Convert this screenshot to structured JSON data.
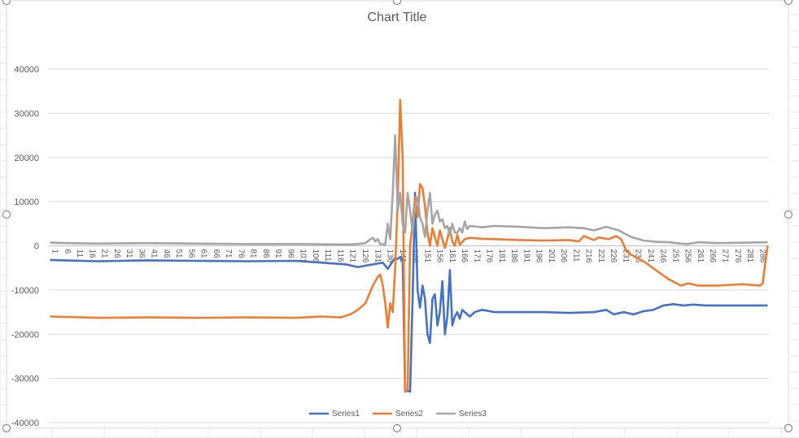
{
  "chart_data": {
    "type": "line",
    "title": "Chart Title",
    "xlabel": "",
    "ylabel": "",
    "ylim": [
      -40000,
      40000
    ],
    "y_ticks": [
      40000,
      30000,
      20000,
      10000,
      0,
      -10000,
      -20000,
      -30000,
      -40000
    ],
    "x_start": 1,
    "x_end": 290,
    "x_tick_labels": [
      1,
      6,
      11,
      16,
      21,
      26,
      31,
      36,
      41,
      46,
      51,
      56,
      61,
      66,
      71,
      76,
      81,
      86,
      91,
      96,
      101,
      106,
      111,
      116,
      121,
      126,
      131,
      136,
      141,
      146,
      151,
      156,
      161,
      166,
      171,
      176,
      181,
      186,
      191,
      196,
      201,
      206,
      211,
      216,
      221,
      226,
      231,
      236,
      241,
      246,
      251,
      256,
      261,
      266,
      271,
      276,
      281,
      286
    ],
    "grid": true,
    "legend_position": "bottom",
    "series": [
      {
        "name": "Series1",
        "color": "#4472C4",
        "points": [
          [
            1,
            -3200
          ],
          [
            20,
            -3500
          ],
          [
            40,
            -3300
          ],
          [
            60,
            -3400
          ],
          [
            80,
            -3500
          ],
          [
            100,
            -3400
          ],
          [
            120,
            -4200
          ],
          [
            125,
            -4800
          ],
          [
            130,
            -4300
          ],
          [
            135,
            -3800
          ],
          [
            137,
            -5200
          ],
          [
            139,
            -3500
          ],
          [
            140,
            -2800
          ],
          [
            141,
            -3000
          ],
          [
            142,
            -2500
          ],
          [
            143,
            -3200
          ],
          [
            144,
            -33000
          ],
          [
            145,
            -32800
          ],
          [
            146,
            -33000
          ],
          [
            147,
            -12000
          ],
          [
            148,
            12000
          ],
          [
            149,
            -10000
          ],
          [
            150,
            -14000
          ],
          [
            151,
            -9000
          ],
          [
            152,
            -12000
          ],
          [
            153,
            -20000
          ],
          [
            154,
            -22000
          ],
          [
            155,
            -12000
          ],
          [
            156,
            -11000
          ],
          [
            157,
            -18000
          ],
          [
            158,
            -15000
          ],
          [
            159,
            -8000
          ],
          [
            160,
            -20000
          ],
          [
            161,
            -16000
          ],
          [
            162,
            -5500
          ],
          [
            163,
            -18000
          ],
          [
            164,
            -16000
          ],
          [
            165,
            -15000
          ],
          [
            166,
            -16500
          ],
          [
            167,
            -14500
          ],
          [
            168,
            -15000
          ],
          [
            170,
            -16000
          ],
          [
            172,
            -15000
          ],
          [
            175,
            -14500
          ],
          [
            180,
            -15000
          ],
          [
            190,
            -15000
          ],
          [
            200,
            -15000
          ],
          [
            210,
            -15200
          ],
          [
            220,
            -15000
          ],
          [
            225,
            -14500
          ],
          [
            228,
            -15500
          ],
          [
            232,
            -15000
          ],
          [
            236,
            -15500
          ],
          [
            240,
            -14800
          ],
          [
            244,
            -14500
          ],
          [
            248,
            -13500
          ],
          [
            252,
            -13200
          ],
          [
            256,
            -13500
          ],
          [
            260,
            -13300
          ],
          [
            265,
            -13500
          ],
          [
            270,
            -13500
          ],
          [
            280,
            -13500
          ],
          [
            290,
            -13500
          ]
        ]
      },
      {
        "name": "Series2",
        "color": "#ED7D31",
        "points": [
          [
            1,
            -16000
          ],
          [
            20,
            -16300
          ],
          [
            40,
            -16200
          ],
          [
            60,
            -16300
          ],
          [
            80,
            -16200
          ],
          [
            100,
            -16300
          ],
          [
            110,
            -16000
          ],
          [
            118,
            -16200
          ],
          [
            122,
            -15500
          ],
          [
            125,
            -14500
          ],
          [
            128,
            -13000
          ],
          [
            131,
            -9000
          ],
          [
            133,
            -7000
          ],
          [
            134,
            -6500
          ],
          [
            135,
            -9000
          ],
          [
            136,
            -13000
          ],
          [
            137,
            -18500
          ],
          [
            138,
            -13000
          ],
          [
            139,
            -15000
          ],
          [
            140,
            -5000
          ],
          [
            141,
            10000
          ],
          [
            142,
            33000
          ],
          [
            143,
            20000
          ],
          [
            144,
            -33000
          ],
          [
            145,
            -32500
          ],
          [
            146,
            0
          ],
          [
            147,
            5000
          ],
          [
            148,
            11000
          ],
          [
            149,
            6500
          ],
          [
            150,
            14000
          ],
          [
            151,
            13000
          ],
          [
            152,
            9000
          ],
          [
            153,
            3000
          ],
          [
            154,
            0
          ],
          [
            155,
            4000
          ],
          [
            156,
            2000
          ],
          [
            157,
            0
          ],
          [
            158,
            3500
          ],
          [
            159,
            1500
          ],
          [
            160,
            -500
          ],
          [
            161,
            1500
          ],
          [
            162,
            4000
          ],
          [
            163,
            1000
          ],
          [
            164,
            0
          ],
          [
            165,
            2500
          ],
          [
            166,
            200
          ],
          [
            168,
            1500
          ],
          [
            170,
            1800
          ],
          [
            175,
            1600
          ],
          [
            180,
            1500
          ],
          [
            190,
            1300
          ],
          [
            200,
            1200
          ],
          [
            210,
            1300
          ],
          [
            214,
            1000
          ],
          [
            216,
            2200
          ],
          [
            220,
            1300
          ],
          [
            222,
            1900
          ],
          [
            226,
            1500
          ],
          [
            229,
            2200
          ],
          [
            231,
            1500
          ],
          [
            233,
            -1000
          ],
          [
            235,
            -2000
          ],
          [
            240,
            -3500
          ],
          [
            245,
            -5500
          ],
          [
            250,
            -7500
          ],
          [
            255,
            -9000
          ],
          [
            258,
            -8500
          ],
          [
            262,
            -9000
          ],
          [
            270,
            -9000
          ],
          [
            280,
            -8700
          ],
          [
            287,
            -9000
          ],
          [
            288,
            -8500
          ],
          [
            289,
            -4000
          ],
          [
            290,
            0
          ]
        ]
      },
      {
        "name": "Series3",
        "color": "#A5A5A5",
        "points": [
          [
            1,
            700
          ],
          [
            20,
            500
          ],
          [
            40,
            600
          ],
          [
            60,
            500
          ],
          [
            80,
            400
          ],
          [
            100,
            400
          ],
          [
            120,
            300
          ],
          [
            125,
            400
          ],
          [
            128,
            600
          ],
          [
            130,
            1500
          ],
          [
            131,
            1800
          ],
          [
            132,
            1000
          ],
          [
            133,
            1500
          ],
          [
            134,
            400
          ],
          [
            136,
            300
          ],
          [
            137,
            5000
          ],
          [
            138,
            1500
          ],
          [
            139,
            12000
          ],
          [
            140,
            25000
          ],
          [
            141,
            8000
          ],
          [
            142,
            12000
          ],
          [
            143,
            5000
          ],
          [
            144,
            3000
          ],
          [
            145,
            12000
          ],
          [
            146,
            8000
          ],
          [
            147,
            3000
          ],
          [
            148,
            9000
          ],
          [
            149,
            11000
          ],
          [
            150,
            6500
          ],
          [
            151,
            5000
          ],
          [
            152,
            2000
          ],
          [
            153,
            8000
          ],
          [
            154,
            12000
          ],
          [
            155,
            5000
          ],
          [
            156,
            7000
          ],
          [
            157,
            8000
          ],
          [
            158,
            5500
          ],
          [
            159,
            6000
          ],
          [
            160,
            4000
          ],
          [
            161,
            4500
          ],
          [
            162,
            2500
          ],
          [
            163,
            5000
          ],
          [
            164,
            3000
          ],
          [
            165,
            3000
          ],
          [
            166,
            4000
          ],
          [
            167,
            3000
          ],
          [
            168,
            5500
          ],
          [
            169,
            3800
          ],
          [
            170,
            4500
          ],
          [
            175,
            4200
          ],
          [
            180,
            4500
          ],
          [
            190,
            4300
          ],
          [
            200,
            4000
          ],
          [
            210,
            4200
          ],
          [
            216,
            4000
          ],
          [
            220,
            3500
          ],
          [
            225,
            4300
          ],
          [
            230,
            3500
          ],
          [
            235,
            2000
          ],
          [
            240,
            1200
          ],
          [
            245,
            900
          ],
          [
            250,
            800
          ],
          [
            255,
            500
          ],
          [
            258,
            400
          ],
          [
            262,
            800
          ],
          [
            270,
            600
          ],
          [
            280,
            700
          ],
          [
            290,
            800
          ]
        ]
      }
    ]
  }
}
